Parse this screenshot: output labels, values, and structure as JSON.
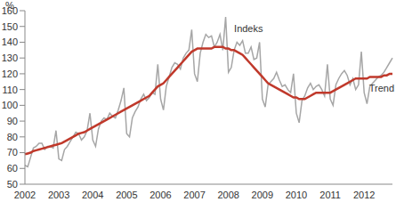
{
  "chart_data": {
    "type": "line",
    "ylabel": "%",
    "categories": [
      "2002",
      null,
      null,
      null,
      null,
      null,
      null,
      null,
      null,
      null,
      null,
      null,
      "2003",
      null,
      null,
      null,
      null,
      null,
      null,
      null,
      null,
      null,
      null,
      null,
      "2004",
      null,
      null,
      null,
      null,
      null,
      null,
      null,
      null,
      null,
      null,
      null,
      "2005",
      null,
      null,
      null,
      null,
      null,
      null,
      null,
      null,
      null,
      null,
      null,
      "2006",
      null,
      null,
      null,
      null,
      null,
      null,
      null,
      null,
      null,
      null,
      null,
      "2007",
      null,
      null,
      null,
      null,
      null,
      null,
      null,
      null,
      null,
      null,
      null,
      "2008",
      null,
      null,
      null,
      null,
      null,
      null,
      null,
      null,
      null,
      null,
      null,
      "2009",
      null,
      null,
      null,
      null,
      null,
      null,
      null,
      null,
      null,
      null,
      null,
      "2010",
      null,
      null,
      null,
      null,
      null,
      null,
      null,
      null,
      null,
      null,
      null,
      "2011",
      null,
      null,
      null,
      null,
      null,
      null,
      null,
      null,
      null,
      null,
      null,
      "2012",
      null,
      null,
      null,
      null,
      null,
      null,
      null,
      null,
      null,
      null
    ],
    "series": [
      {
        "name": "Indeks",
        "color": "#a6a6a6",
        "values": [
          62,
          61,
          67,
          73,
          74,
          76,
          76,
          72,
          74,
          74,
          73,
          84,
          66,
          65,
          72,
          74,
          77,
          80,
          83,
          82,
          78,
          80,
          84,
          95,
          78,
          74,
          85,
          90,
          92,
          91,
          95,
          93,
          92,
          97,
          103,
          111,
          82,
          80,
          92,
          96,
          99,
          104,
          107,
          103,
          105,
          108,
          107,
          126,
          104,
          97,
          112,
          118,
          124,
          127,
          126,
          123,
          130,
          133,
          135,
          148,
          120,
          115,
          133,
          140,
          145,
          143,
          144,
          137,
          140,
          145,
          135,
          156,
          121,
          124,
          135,
          140,
          138,
          141,
          133,
          133,
          137,
          129,
          130,
          140,
          104,
          99,
          113,
          115,
          117,
          121,
          116,
          112,
          113,
          110,
          108,
          120,
          95,
          89,
          103,
          106,
          111,
          114,
          110,
          112,
          113,
          110,
          106,
          126,
          104,
          100,
          113,
          117,
          120,
          122,
          119,
          113,
          117,
          110,
          113,
          134,
          108,
          101,
          112,
          114,
          116,
          118,
          119,
          121,
          124,
          127,
          130
        ]
      },
      {
        "name": "Trend",
        "color": "#c0392b",
        "values": [
          69,
          69.5,
          70,
          71,
          71.5,
          72,
          72.5,
          73,
          73.5,
          74,
          74.5,
          75,
          75.5,
          76,
          77,
          78,
          79,
          80,
          81,
          82,
          82.5,
          83,
          84,
          85,
          86,
          87,
          88,
          89,
          90,
          91,
          92,
          93,
          94,
          95,
          96,
          97,
          98,
          99,
          100,
          101,
          102,
          103,
          104,
          105,
          106,
          108,
          110,
          112,
          113,
          114,
          116,
          118,
          120,
          122,
          124,
          126,
          128,
          130,
          132,
          134,
          135,
          136,
          136,
          136,
          136,
          136,
          136,
          137,
          137,
          137,
          137,
          136,
          136,
          135,
          135,
          134,
          133,
          132,
          130,
          128,
          126,
          124,
          122,
          120,
          118,
          116,
          114,
          113,
          112,
          111,
          110,
          109,
          108,
          107,
          106,
          105,
          105,
          104,
          104,
          104,
          105,
          106,
          107,
          108,
          108,
          108,
          108,
          108,
          108,
          109,
          110,
          111,
          112,
          113,
          114,
          115,
          116,
          117,
          117,
          117,
          117,
          117,
          118,
          118,
          118,
          118,
          118,
          119,
          119,
          120,
          120
        ]
      }
    ],
    "ylim": [
      50,
      160
    ],
    "yticks": [
      50,
      60,
      70,
      80,
      90,
      100,
      110,
      120,
      130,
      140,
      150,
      160
    ],
    "grid": false
  }
}
